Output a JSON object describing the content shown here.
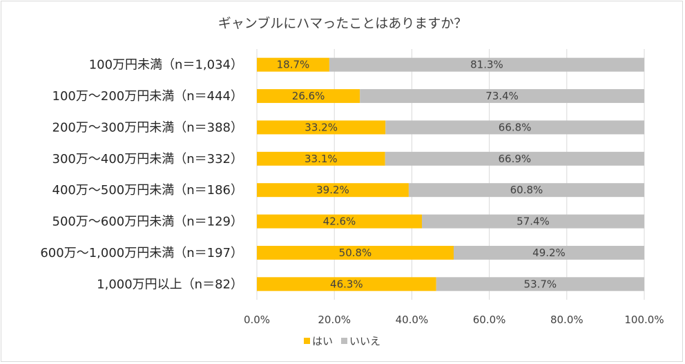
{
  "chart_data": {
    "type": "bar",
    "orientation": "horizontal",
    "stacked": "percent",
    "title": "ギャンブルにハマったことはありますか？",
    "categories": [
      "100万円未満（n＝1,034）",
      "100万～200万円未満（n＝444）",
      "200万～300万円未満（n＝388）",
      "300万～400万円未満（n＝332）",
      "400万～500万円未満（n＝186）",
      "500万～600万円未満（n＝129）",
      "600万～1,000万円未満（n＝197）",
      "1,000万円以上（n＝82）"
    ],
    "series": [
      {
        "name": "はい",
        "color": "#FFC000",
        "values": [
          18.7,
          26.6,
          33.2,
          33.1,
          39.2,
          42.6,
          50.8,
          46.3
        ]
      },
      {
        "name": "いいえ",
        "color": "#BFBFBF",
        "values": [
          81.3,
          73.4,
          66.8,
          66.9,
          60.8,
          57.4,
          49.2,
          53.7
        ]
      }
    ],
    "xlim": [
      0,
      100
    ],
    "xticks": [
      "0.0%",
      "20.0%",
      "40.0%",
      "60.0%",
      "80.0%",
      "100.0%"
    ],
    "grid": true,
    "legend_position": "bottom"
  }
}
